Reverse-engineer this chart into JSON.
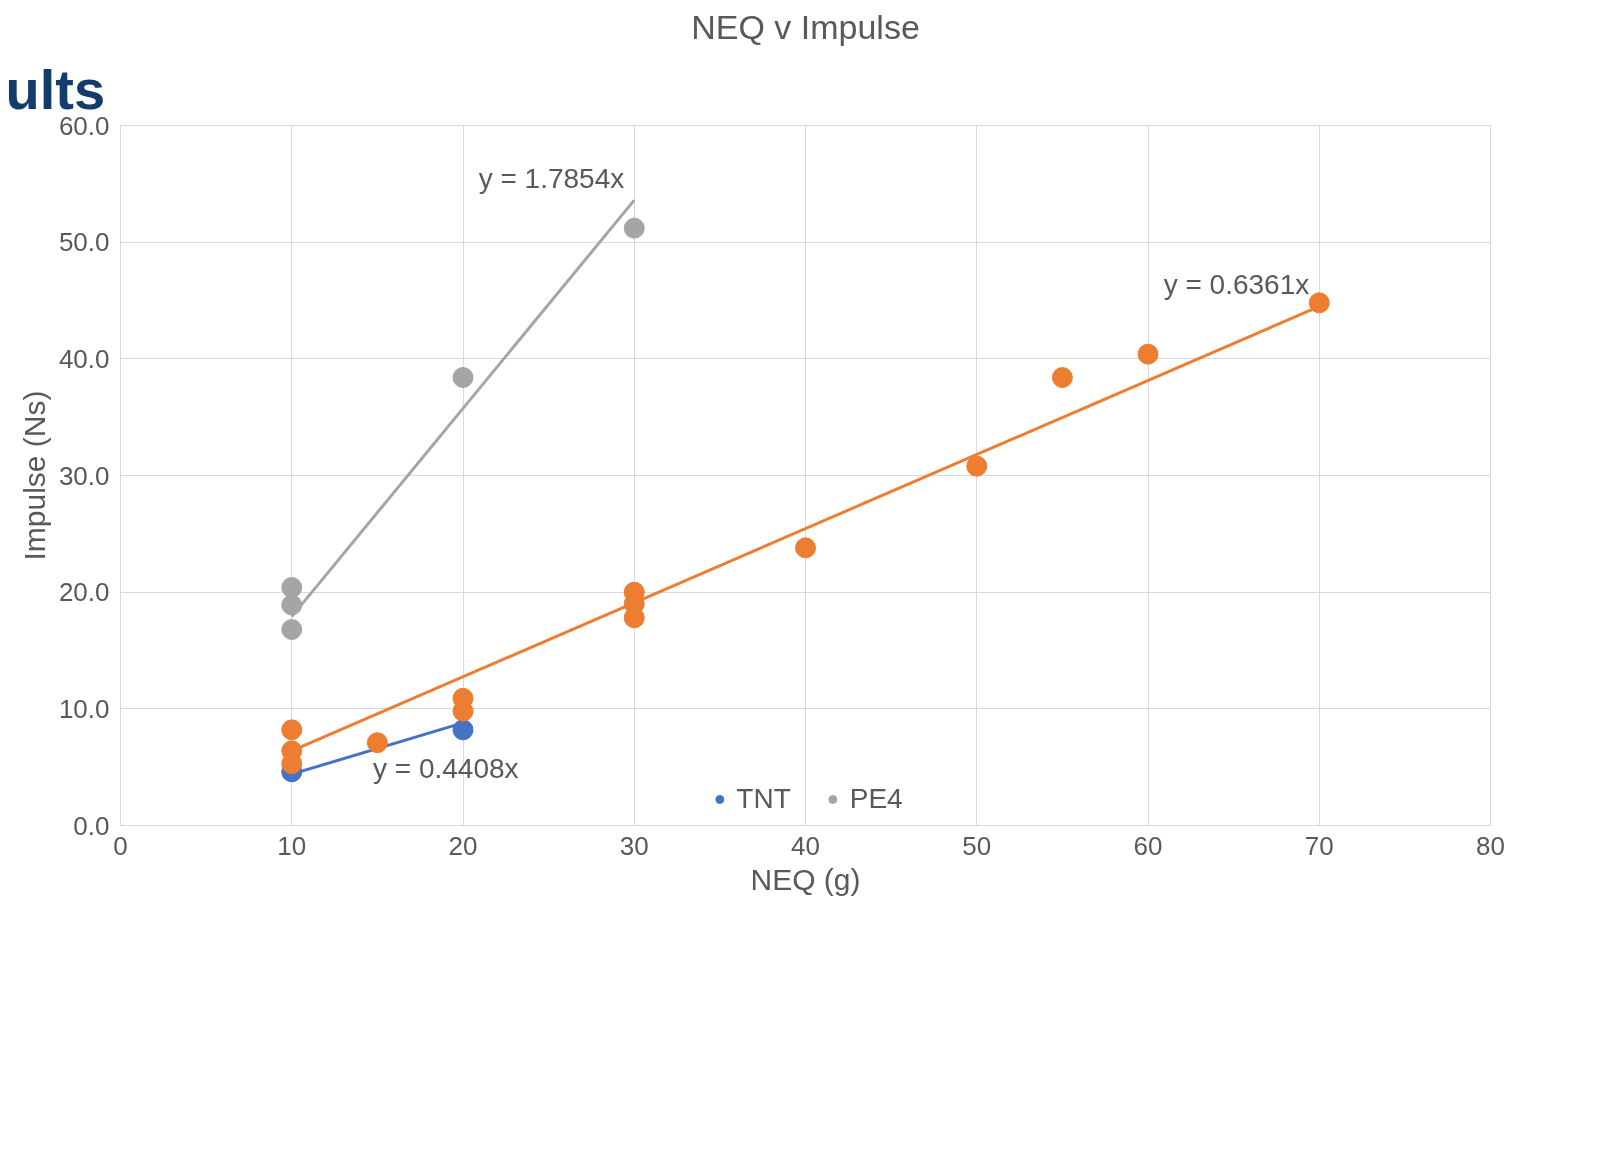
{
  "chart_data": {
    "type": "scatter",
    "title": "NEQ v Impulse",
    "xlabel": "NEQ (g)",
    "ylabel": "Impulse (Ns)",
    "xlim": [
      0,
      80
    ],
    "xticks": [
      0,
      10,
      20,
      30,
      40,
      50,
      60,
      70,
      80
    ],
    "ylim": [
      0,
      60
    ],
    "yticks": [
      {
        "value": 0,
        "label": "0.0"
      },
      {
        "value": 10,
        "label": "10.0"
      },
      {
        "value": 20,
        "label": "20.0"
      },
      {
        "value": 30,
        "label": "30.0"
      },
      {
        "value": 40,
        "label": "40.0"
      },
      {
        "value": 50,
        "label": "50.0"
      },
      {
        "value": 60,
        "label": "60.0"
      }
    ],
    "grid": true,
    "legend": "bottom",
    "series": [
      {
        "name": "TNT",
        "color": "#4472c4",
        "marker": "circle",
        "x": [
          10,
          20
        ],
        "values": [
          4.6,
          8.2
        ]
      },
      {
        "color": "#ed7d31",
        "marker": "circle",
        "x": [
          10,
          10,
          10,
          15,
          20,
          20,
          30,
          30,
          30,
          40,
          50,
          55,
          60,
          70
        ],
        "values": [
          8.2,
          6.4,
          5.3,
          7.1,
          10.9,
          9.8,
          20.0,
          19.0,
          17.8,
          23.8,
          30.8,
          38.4,
          40.4,
          44.8
        ]
      },
      {
        "name": "PE4",
        "color": "#a5a5a5",
        "marker": "circle",
        "x": [
          10,
          10,
          10,
          20,
          30
        ],
        "values": [
          20.4,
          18.9,
          16.8,
          38.4,
          51.2
        ]
      },
      {
        "type": "line",
        "marker": "none",
        "color": "#4472c4",
        "x": [
          10,
          20
        ],
        "values": [
          4.4,
          8.8
        ]
      },
      {
        "type": "line",
        "marker": "none",
        "color": "#ed7d31",
        "x": [
          10,
          70
        ],
        "values": [
          6.4,
          44.5
        ]
      },
      {
        "type": "line",
        "marker": "none",
        "color": "#a5a5a5",
        "x": [
          10,
          30
        ],
        "values": [
          17.9,
          53.6
        ]
      }
    ],
    "annotations": [
      "ults",
      {
        "text": "y = 1.7854x",
        "x": 30,
        "y": 53.6
      },
      {
        "text": "y = 0.6361x",
        "x": 70,
        "y": 44.5
      },
      {
        "text": "y = 0.4408x",
        "x": 20,
        "y": 8.8
      }
    ]
  }
}
